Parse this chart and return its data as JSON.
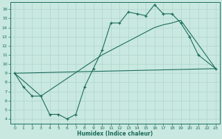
{
  "xlabel": "Humidex (Indice chaleur)",
  "background_color": "#c8e8e0",
  "line_color": "#1a6b5a",
  "grid_color": "#b0d4cc",
  "xlim": [
    -0.5,
    23.5
  ],
  "ylim": [
    3.5,
    16.8
  ],
  "yticks": [
    4,
    5,
    6,
    7,
    8,
    9,
    10,
    11,
    12,
    13,
    14,
    15,
    16
  ],
  "xticks": [
    0,
    1,
    2,
    3,
    4,
    5,
    6,
    7,
    8,
    9,
    10,
    11,
    12,
    13,
    14,
    15,
    16,
    17,
    18,
    19,
    20,
    21,
    22,
    23
  ],
  "line1_x": [
    0,
    1,
    2,
    3,
    4,
    5,
    6,
    7,
    8,
    9,
    10,
    11,
    12,
    13,
    14,
    15,
    16,
    17,
    18,
    19,
    20,
    21,
    23
  ],
  "line1_y": [
    9.0,
    7.5,
    6.5,
    6.5,
    4.5,
    4.5,
    4.0,
    4.5,
    7.5,
    9.5,
    11.5,
    14.5,
    14.5,
    15.7,
    15.5,
    15.3,
    16.5,
    15.5,
    15.5,
    14.5,
    13.0,
    11.0,
    9.5
  ],
  "line2_x": [
    0,
    3,
    10,
    11,
    12,
    13,
    14,
    15,
    16,
    17,
    18,
    19,
    23
  ],
  "line2_y": [
    9.0,
    6.5,
    11.0,
    11.5,
    12.0,
    12.5,
    13.0,
    13.5,
    14.0,
    14.3,
    14.5,
    14.8,
    9.5
  ],
  "line3_x": [
    0,
    23
  ],
  "line3_y": [
    9.0,
    9.5
  ]
}
